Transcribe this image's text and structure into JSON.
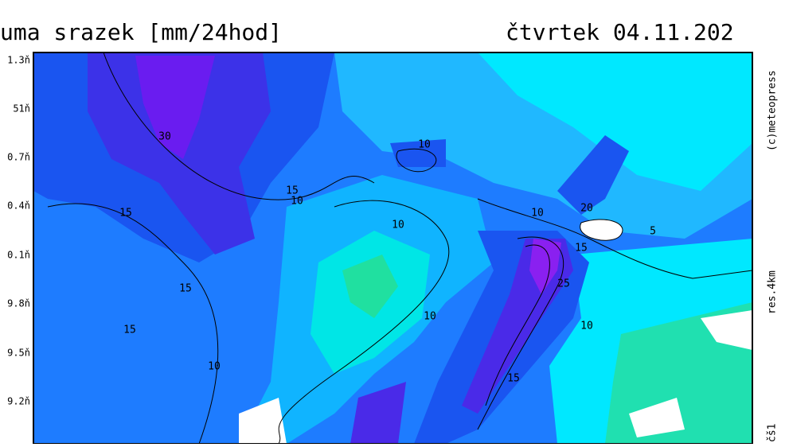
{
  "header": {
    "title": "uma srazek [mm/24hod]",
    "date": "čtvrtek 04.11.202"
  },
  "lat_labels": [
    "1.3ň",
    "51ň",
    "0.7ň",
    "0.4ň",
    "0.1ň",
    "9.8ň",
    "9.5ň",
    "9.2ň"
  ],
  "side_labels": {
    "copyright": "(c)meteopress",
    "resolution": "res.4km",
    "extra": "čš1"
  },
  "contour_labels": [
    "30",
    "15",
    "15",
    "10",
    "10",
    "10",
    "10",
    "20",
    "5",
    "15",
    "25",
    "15",
    "15",
    "10",
    "10",
    "10",
    "15"
  ]
}
